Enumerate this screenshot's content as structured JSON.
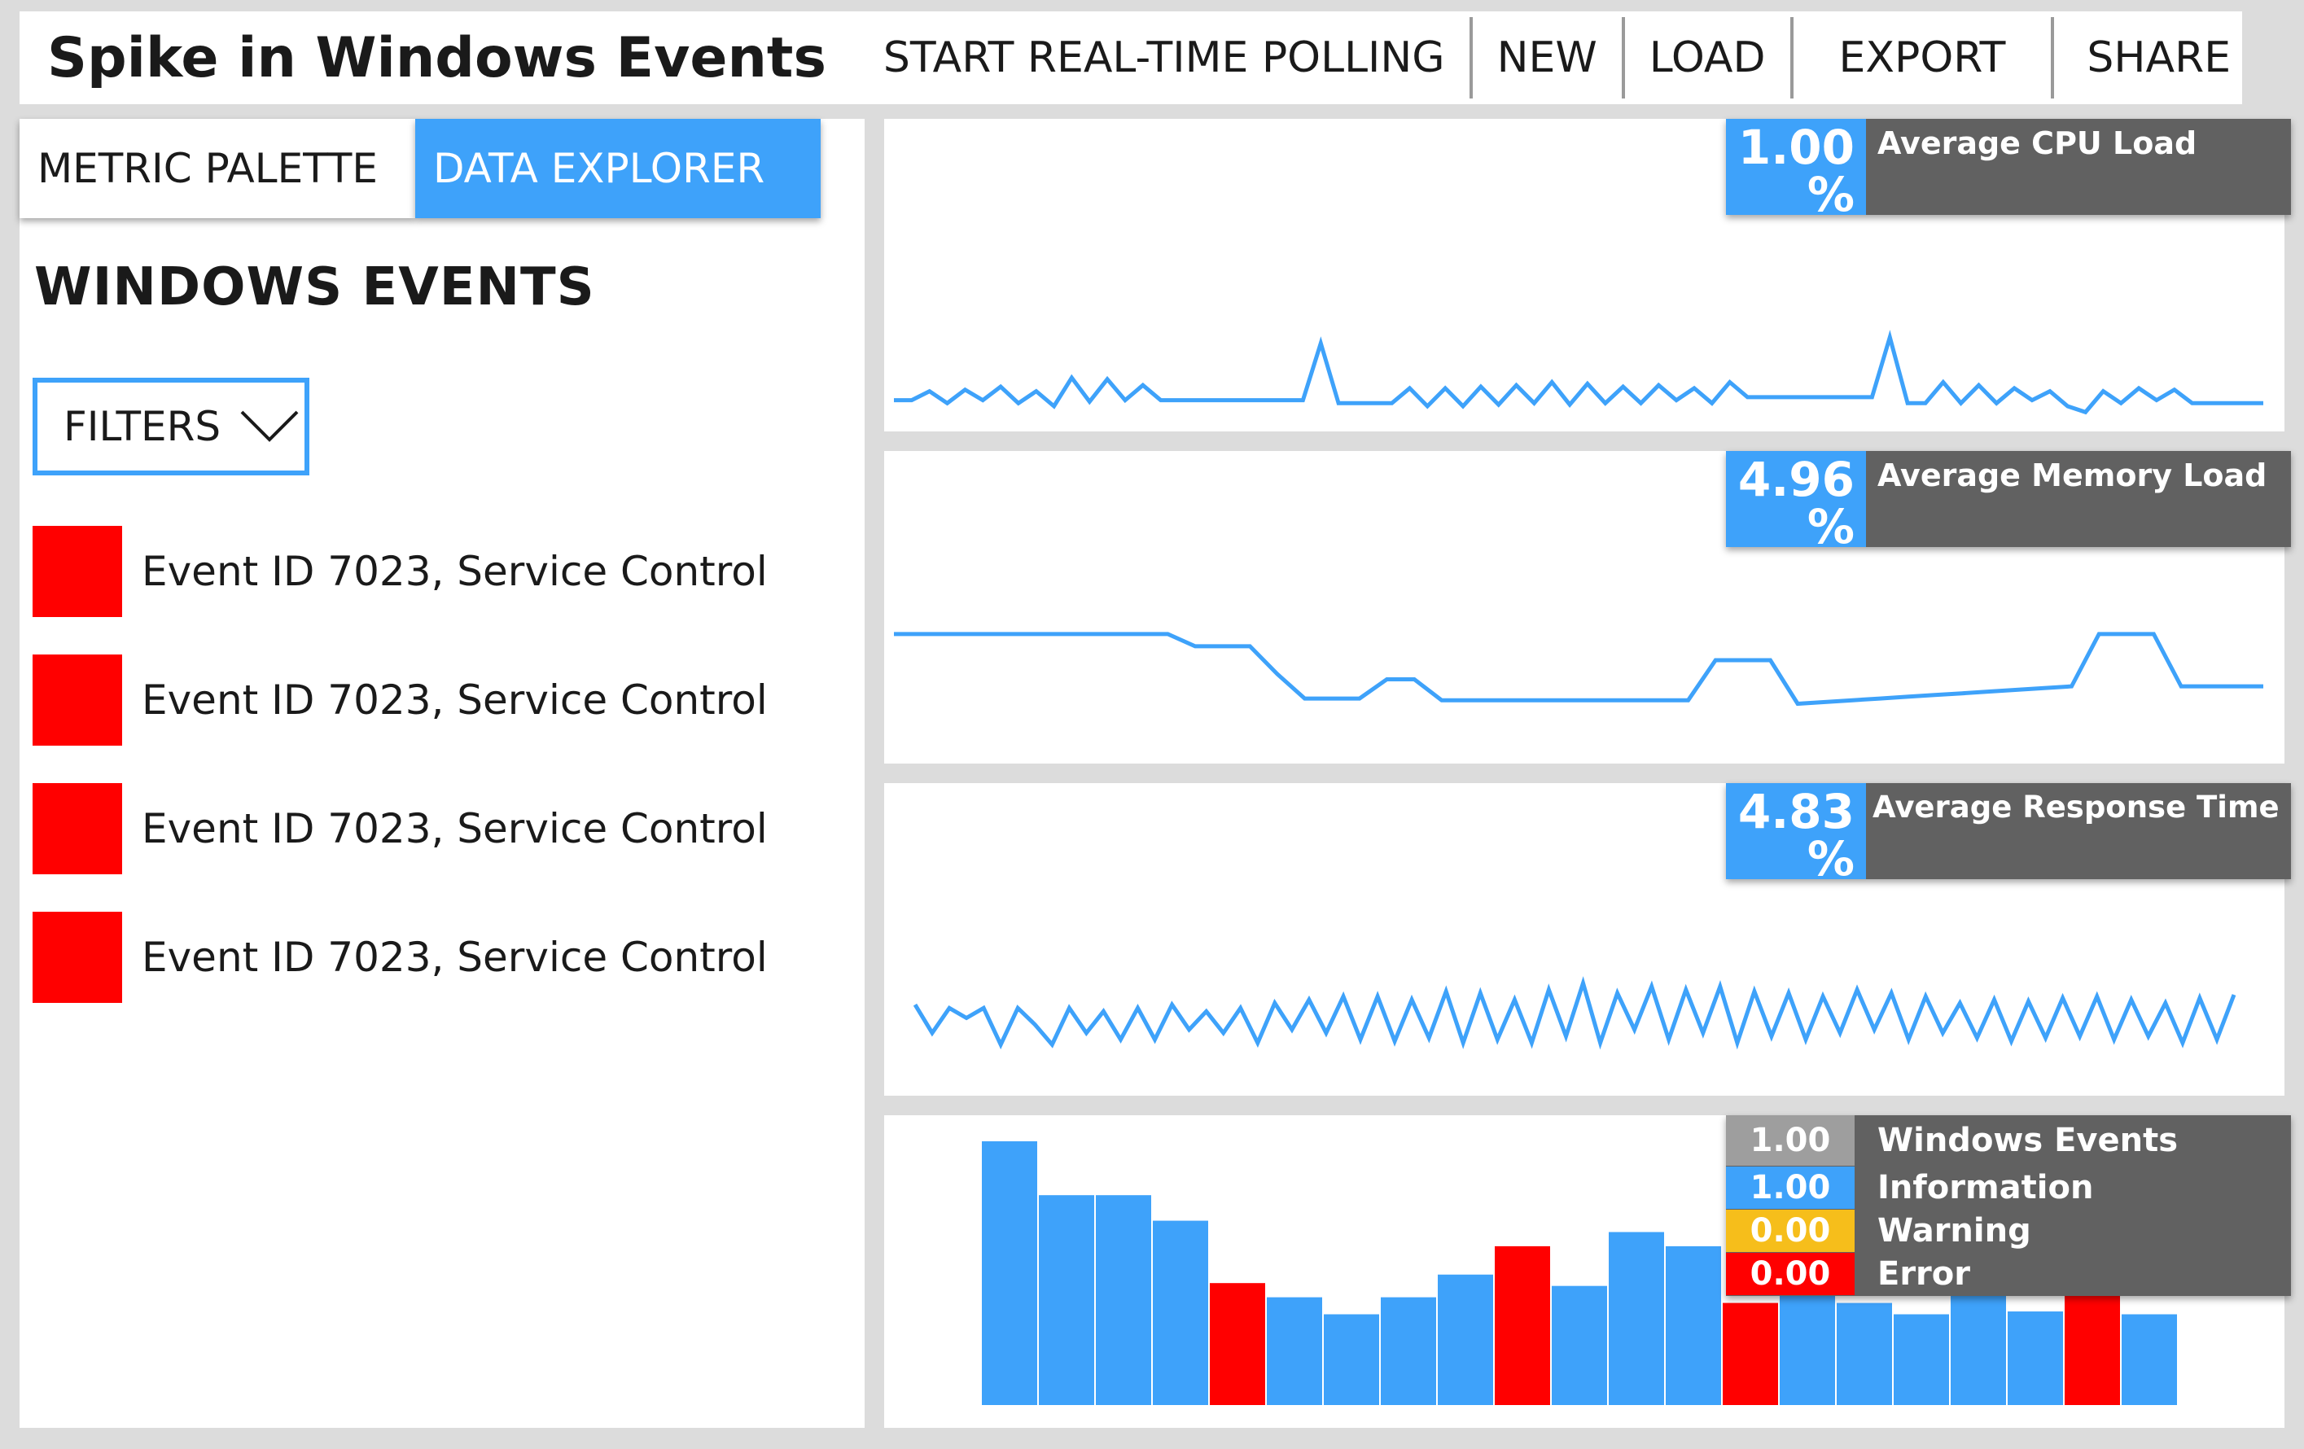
{
  "header": {
    "title": "Spike in Windows Events",
    "menu": [
      "START REAL-TIME POLLING",
      "NEW",
      "LOAD",
      "EXPORT",
      "SHARE"
    ]
  },
  "sidebar": {
    "tabs": [
      "METRIC PALETTE",
      "DATA EXPLORER"
    ],
    "active_tab": "DATA EXPLORER",
    "section_title": "WINDOWS EVENTS",
    "filters_label": "FILTERS",
    "events": [
      "Event ID 7023, Service Control",
      "Event ID 7023, Service Control",
      "Event ID 7023, Service Control",
      "Event ID 7023, Service Control"
    ]
  },
  "colors": {
    "accent": "#3ea2fa",
    "error": "#ff0000",
    "warning": "#f6be1b",
    "neutral": "#9e9e9e",
    "panel_dark": "#616161"
  },
  "kpis": [
    {
      "value": "1.00",
      "unit": "%",
      "label": "Average CPU Load"
    },
    {
      "value": "4.96",
      "unit": "%",
      "label": "Average Memory Load"
    },
    {
      "value": "4.83",
      "unit": "%",
      "label": "Average Response Time"
    }
  ],
  "legend": [
    {
      "value": "1.00",
      "label": "Windows Events",
      "color": "#9e9e9e"
    },
    {
      "value": "1.00",
      "label": "Information",
      "color": "#3ea2fa"
    },
    {
      "value": "0.00",
      "label": "Warning",
      "color": "#f6be1b"
    },
    {
      "value": "0.00",
      "label": "Error",
      "color": "#ff0000"
    }
  ],
  "chart_data": [
    {
      "type": "line",
      "label": "Average CPU Load",
      "ylim": [
        0,
        10
      ],
      "values": [
        1.0,
        1.0,
        1.6,
        0.8,
        1.7,
        1.0,
        1.9,
        0.8,
        1.6,
        0.6,
        2.5,
        0.9,
        2.4,
        1.0,
        2.0,
        1.0,
        1.0,
        1.0,
        1.0,
        1.0,
        1.0,
        1.0,
        1.0,
        1.0,
        4.8,
        0.8,
        0.8,
        0.8,
        0.8,
        1.8,
        0.6,
        1.8,
        0.6,
        1.9,
        0.7,
        2.0,
        0.8,
        2.2,
        0.7,
        2.1,
        0.8,
        1.9,
        0.8,
        2.0,
        1.0,
        1.8,
        0.8,
        2.2,
        1.2,
        1.2,
        1.2,
        1.2,
        1.2,
        1.2,
        1.2,
        1.2,
        5.2,
        0.8,
        0.8,
        2.2,
        0.8,
        2.0,
        0.8,
        1.8,
        1.0,
        1.6,
        0.6,
        0.2,
        1.6,
        0.8,
        1.8,
        1.0,
        1.7,
        0.8,
        0.8,
        0.8,
        0.8,
        0.8
      ]
    },
    {
      "type": "line",
      "label": "Average Memory Load",
      "ylim": [
        0,
        10
      ],
      "values": [
        6.5,
        6.5,
        6.5,
        6.5,
        6.5,
        6.5,
        6.5,
        6.5,
        6.5,
        6.5,
        6.5,
        5.8,
        5.8,
        5.8,
        4.2,
        2.8,
        2.8,
        2.8,
        3.9,
        3.9,
        2.7,
        2.7,
        2.7,
        2.7,
        2.7,
        2.7,
        2.7,
        2.7,
        2.7,
        2.7,
        5.0,
        5.0,
        5.0,
        2.5,
        2.6,
        2.7,
        2.8,
        2.9,
        3.0,
        3.1,
        3.2,
        3.3,
        3.4,
        3.5,
        6.5,
        6.5,
        6.5,
        3.5,
        3.5,
        3.5,
        3.5
      ]
    },
    {
      "type": "line",
      "label": "Average Response Time",
      "ylim": [
        0,
        10
      ],
      "values": [
        4.5,
        2.8,
        4.3,
        3.7,
        4.3,
        2.1,
        4.3,
        3.3,
        2.1,
        4.3,
        2.8,
        4.1,
        2.4,
        4.3,
        2.4,
        4.5,
        3.0,
        4.1,
        2.8,
        4.3,
        2.2,
        4.6,
        3.0,
        4.8,
        2.8,
        5.0,
        2.4,
        5.0,
        2.3,
        4.8,
        2.5,
        5.3,
        2.2,
        5.2,
        2.4,
        4.8,
        2.2,
        5.4,
        2.6,
        5.8,
        2.2,
        5.2,
        3.0,
        5.6,
        2.4,
        5.4,
        2.8,
        5.6,
        2.2,
        5.3,
        2.6,
        5.2,
        2.4,
        5.0,
        2.8,
        5.4,
        3.0,
        5.2,
        2.4,
        5.0,
        2.8,
        4.6,
        2.5,
        4.8,
        2.3,
        4.7,
        2.5,
        4.9,
        2.6,
        5.0,
        2.4,
        4.8,
        2.6,
        4.6,
        2.2,
        4.9,
        2.4,
        5.1
      ]
    },
    {
      "type": "bar",
      "label": "Windows Events",
      "values": [
        9.3,
        7.4,
        7.4,
        6.5,
        4.3,
        3.8,
        3.2,
        3.8,
        4.6,
        5.6,
        4.2,
        6.1,
        5.6,
        3.6,
        3.9,
        3.6,
        3.2,
        4.6,
        3.3,
        5.3,
        3.2
      ],
      "colors": [
        "#3ea2fa",
        "#3ea2fa",
        "#3ea2fa",
        "#3ea2fa",
        "#ff0000",
        "#3ea2fa",
        "#3ea2fa",
        "#3ea2fa",
        "#3ea2fa",
        "#ff0000",
        "#3ea2fa",
        "#3ea2fa",
        "#3ea2fa",
        "#ff0000",
        "#3ea2fa",
        "#3ea2fa",
        "#3ea2fa",
        "#3ea2fa",
        "#3ea2fa",
        "#ff0000",
        "#3ea2fa"
      ]
    }
  ]
}
